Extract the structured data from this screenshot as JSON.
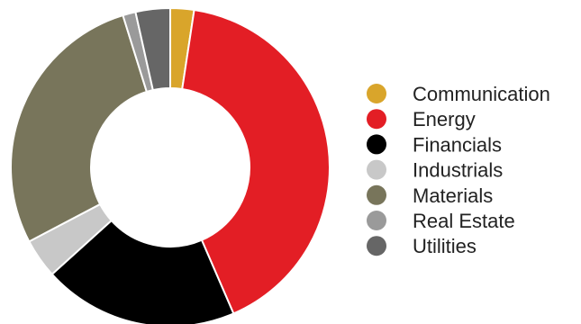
{
  "chart_data": {
    "type": "pie",
    "variant": "donut",
    "categories": [
      "Communication",
      "Energy",
      "Financials",
      "Industrials",
      "Materials",
      "Real Estate",
      "Utilities"
    ],
    "values": [
      2.4,
      41.1,
      19.8,
      4.0,
      27.9,
      1.3,
      3.5
    ],
    "unit": "%",
    "colors": [
      "#D9A52B",
      "#E31E25",
      "#000000",
      "#C8C8C8",
      "#78755B",
      "#9A9A9A",
      "#666666"
    ],
    "legend": {
      "position": "right",
      "entries": [
        "Communication",
        "Energy",
        "Financials",
        "Industrials",
        "Materials",
        "Real Estate",
        "Utilities"
      ]
    }
  }
}
